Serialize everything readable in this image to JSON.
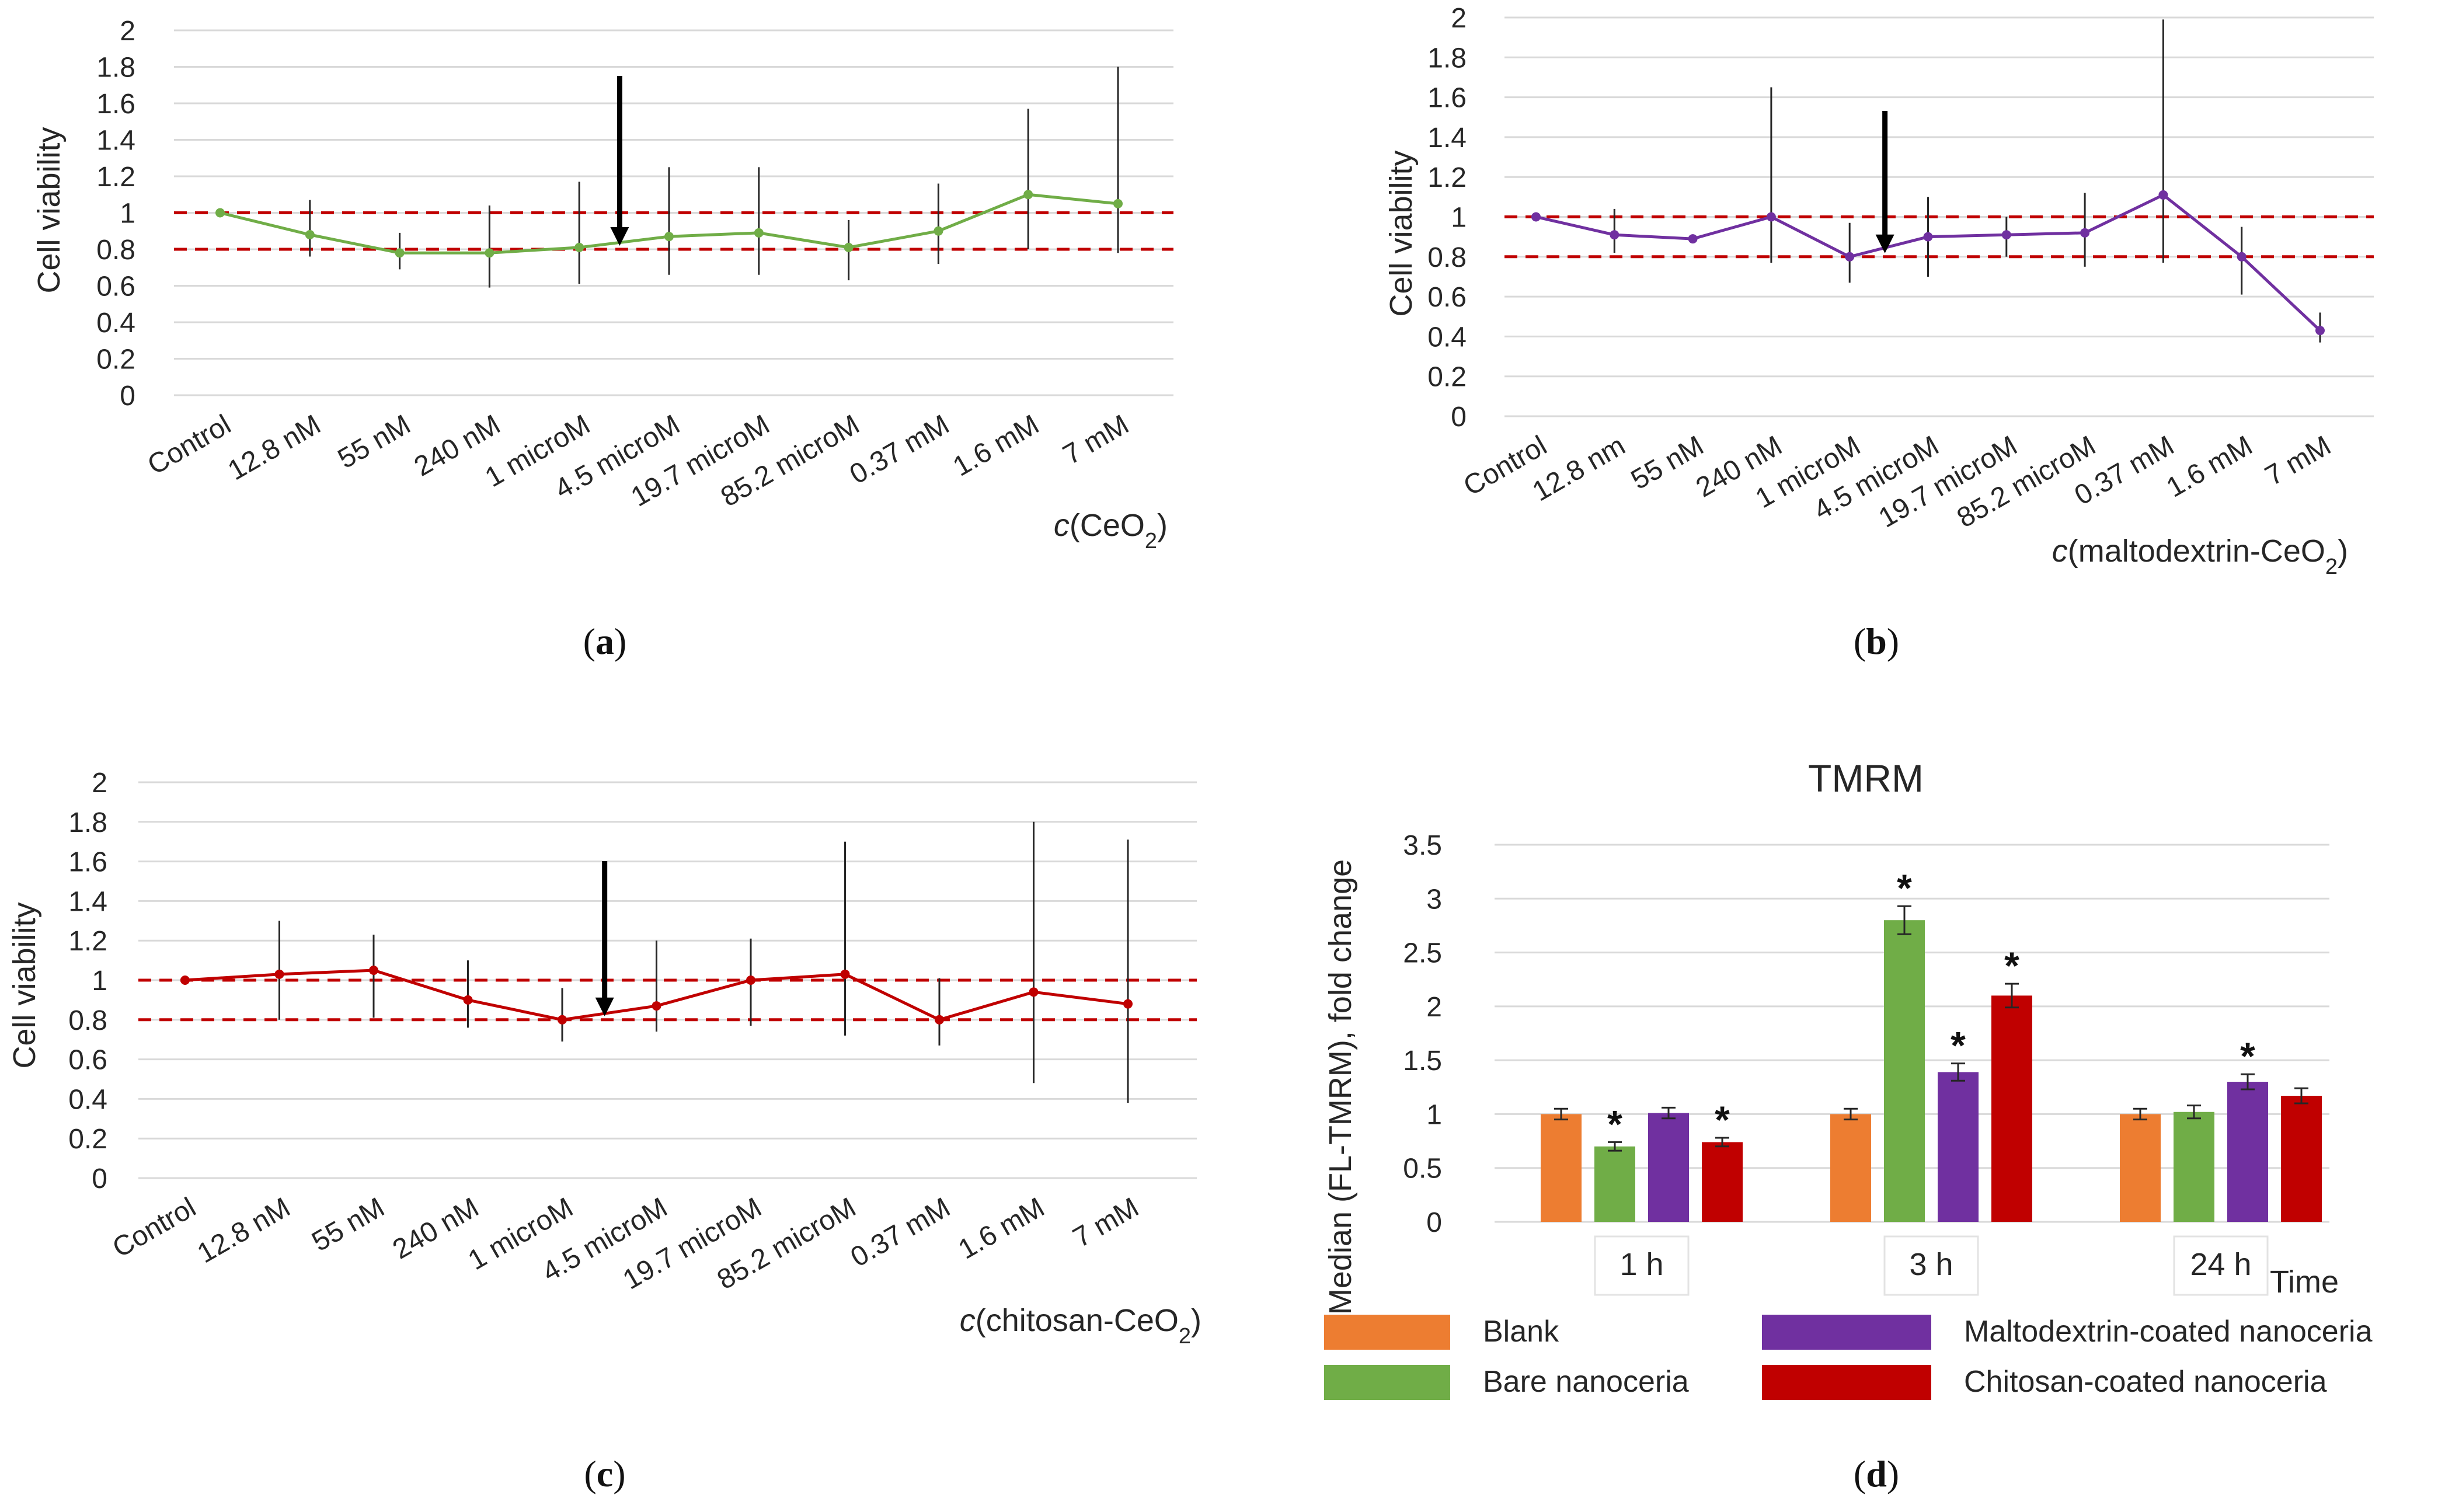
{
  "chart_data": [
    {
      "id": "a",
      "type": "line",
      "panel_label": "a",
      "ylabel": "Cell viability",
      "xlabel_italic": "c",
      "xlabel_text": "(CeO",
      "xlabel_sub": "2",
      "xlabel_close": ")",
      "ylim": [
        0,
        2
      ],
      "yticks": [
        "0",
        "0.2",
        "0.4",
        "0.6",
        "0.8",
        "1",
        "1.2",
        "1.4",
        "1.6",
        "1.8",
        "2"
      ],
      "categories": [
        "Control",
        "12.8 nM",
        "55 nM",
        "240 nM",
        "1 microM",
        "4.5 microM",
        "19.7 microM",
        "85.2 microM",
        "0.37 mM",
        "1.6 mM",
        "7 mM"
      ],
      "values": [
        1.0,
        0.88,
        0.78,
        0.78,
        0.81,
        0.87,
        0.89,
        0.81,
        0.9,
        1.1,
        1.05
      ],
      "err_low": [
        1.0,
        0.76,
        0.69,
        0.59,
        0.61,
        0.66,
        0.66,
        0.63,
        0.72,
        0.8,
        0.78
      ],
      "err_high": [
        1.0,
        1.07,
        0.89,
        1.04,
        1.17,
        1.25,
        1.25,
        0.96,
        1.16,
        1.57,
        1.8
      ],
      "color": "#70ad47",
      "ref_lines": [
        1,
        0.8
      ],
      "ref_color": "#c00000",
      "arrow_category": "1 microM"
    },
    {
      "id": "b",
      "type": "line",
      "panel_label": "b",
      "ylabel": "Cell viability",
      "xlabel_italic": "c",
      "xlabel_text": "(maltodextrin-CeO",
      "xlabel_sub": "2",
      "xlabel_close": ")",
      "ylim": [
        0,
        2
      ],
      "yticks": [
        "0",
        "0.2",
        "0.4",
        "0.6",
        "0.8",
        "1",
        "1.2",
        "1.4",
        "1.6",
        "1.8",
        "2"
      ],
      "categories": [
        "Control",
        "12.8 nm",
        "55 nM",
        "240 nM",
        "1 microM",
        "4.5 microM",
        "19.7 microM",
        "85.2 microM",
        "0.37 mM",
        "1.6 mM",
        "7 mM"
      ],
      "values": [
        1.0,
        0.91,
        0.89,
        1.0,
        0.8,
        0.9,
        0.91,
        0.92,
        1.11,
        0.8,
        0.43
      ],
      "err_low": [
        1.0,
        0.82,
        0.89,
        0.77,
        0.67,
        0.7,
        0.8,
        0.75,
        0.77,
        0.61,
        0.37
      ],
      "err_high": [
        1.0,
        1.04,
        0.89,
        1.65,
        0.97,
        1.1,
        1.0,
        1.12,
        1.99,
        0.95,
        0.52
      ],
      "color": "#7030a0",
      "ref_lines": [
        1,
        0.8
      ],
      "ref_color": "#c00000",
      "arrow_category": "1 microM"
    },
    {
      "id": "c",
      "type": "line",
      "panel_label": "c",
      "ylabel": "Cell viability",
      "xlabel_italic": "c",
      "xlabel_text": "(chitosan-CeO",
      "xlabel_sub": "2",
      "xlabel_close": ")",
      "ylim": [
        0,
        2
      ],
      "yticks": [
        "0",
        "0.2",
        "0.4",
        "0.6",
        "0.8",
        "1",
        "1.2",
        "1.4",
        "1.6",
        "1.8",
        "2"
      ],
      "categories": [
        "Control",
        "12.8 nM",
        "55 nM",
        "240 nM",
        "1 microM",
        "4.5 microM",
        "19.7 microM",
        "85.2 microM",
        "0.37 mM",
        "1.6 mM",
        "7 mM"
      ],
      "values": [
        1.0,
        1.03,
        1.05,
        0.9,
        0.8,
        0.87,
        1.0,
        1.03,
        0.8,
        0.94,
        0.88
      ],
      "err_low": [
        1.0,
        0.8,
        0.81,
        0.76,
        0.69,
        0.74,
        0.77,
        0.72,
        0.67,
        0.48,
        0.38
      ],
      "err_high": [
        1.0,
        1.3,
        1.23,
        1.1,
        0.96,
        1.2,
        1.21,
        1.7,
        1.01,
        1.8,
        1.71
      ],
      "color": "#c00000",
      "ref_lines": [
        1,
        0.8
      ],
      "ref_color": "#c00000",
      "arrow_category": "1 microM"
    },
    {
      "id": "d",
      "type": "bar",
      "panel_label": "d",
      "title": "TMRM",
      "ylabel": "Median (FL-TMRM), fold change",
      "xlabel": "Time",
      "ylim": [
        0,
        3.5
      ],
      "yticks": [
        "0",
        "0.5",
        "1",
        "1.5",
        "2",
        "2.5",
        "3",
        "3.5"
      ],
      "categories": [
        "1 h",
        "3 h",
        "24 h"
      ],
      "series": [
        {
          "name": "Blank",
          "color": "#ed7d31",
          "values": [
            1.0,
            1.0,
            1.0
          ],
          "errors": [
            0.05,
            0.05,
            0.05
          ],
          "significant": [
            false,
            false,
            false
          ]
        },
        {
          "name": "Bare nanoceria",
          "color": "#70ad47",
          "values": [
            0.7,
            2.8,
            1.02
          ],
          "errors": [
            0.04,
            0.13,
            0.06
          ],
          "significant": [
            true,
            true,
            false
          ]
        },
        {
          "name": "Maltodextrin-coated nanoceria",
          "color": "#7030a0",
          "values": [
            1.01,
            1.39,
            1.3
          ],
          "errors": [
            0.05,
            0.08,
            0.07
          ],
          "significant": [
            false,
            true,
            true
          ]
        },
        {
          "name": "Chitosan-coated nanoceria",
          "color": "#c00000",
          "values": [
            0.74,
            2.1,
            1.17
          ],
          "errors": [
            0.04,
            0.11,
            0.07
          ],
          "significant": [
            true,
            true,
            false
          ]
        }
      ],
      "significance_mark": "*"
    }
  ]
}
